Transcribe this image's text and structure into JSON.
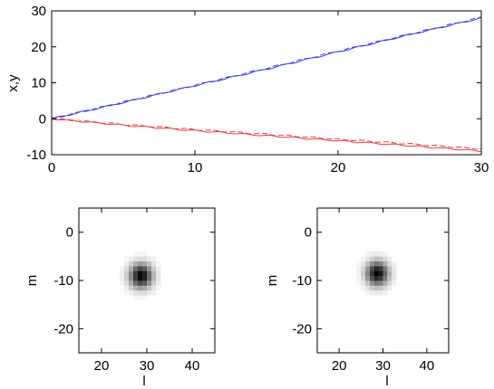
{
  "chart_data": [
    {
      "type": "line",
      "xlabel": "",
      "ylabel": "x,y",
      "xlim": [
        0,
        30
      ],
      "ylim": [
        -10,
        30
      ],
      "xticks": [
        "0",
        "10",
        "20",
        "30"
      ],
      "yticks": [
        "30",
        "20",
        "10",
        "0",
        "-10"
      ],
      "grid": false,
      "series": [
        {
          "line_style": "solid",
          "color": "#3a3af0",
          "x": [
            0,
            5,
            10,
            15,
            20,
            25,
            30
          ],
          "y": [
            0,
            4.5,
            9.2,
            13.8,
            18.6,
            23.4,
            28.0
          ]
        },
        {
          "line_style": "dashed",
          "color": "#3a3af0",
          "x": [
            0,
            5,
            10,
            15,
            20,
            25,
            30
          ],
          "y": [
            0,
            4.6,
            9.3,
            14.0,
            18.8,
            23.5,
            28.2
          ]
        },
        {
          "line_style": "solid",
          "color": "#f03a3a",
          "x": [
            0,
            5,
            10,
            15,
            20,
            25,
            30
          ],
          "y": [
            0,
            -1.8,
            -3.3,
            -4.7,
            -6.1,
            -7.5,
            -9.0
          ]
        },
        {
          "line_style": "dashed",
          "color": "#f03a3a",
          "x": [
            0,
            5,
            10,
            15,
            20,
            25,
            30
          ],
          "y": [
            0,
            -1.6,
            -3.0,
            -4.3,
            -5.7,
            -7.0,
            -8.4
          ]
        }
      ]
    },
    {
      "type": "heatmap",
      "xlabel": "l",
      "ylabel": "m",
      "xlim": [
        15,
        45
      ],
      "ylim": [
        -25,
        5
      ],
      "xticks": [
        "20",
        "30",
        "40"
      ],
      "yticks": [
        "0",
        "-10",
        "-20"
      ],
      "blob": {
        "center_l": 28.7,
        "center_m": -9.0,
        "width": 1.8
      }
    },
    {
      "type": "heatmap",
      "xlabel": "l",
      "ylabel": "m",
      "xlim": [
        15,
        45
      ],
      "ylim": [
        -25,
        5
      ],
      "xticks": [
        "20",
        "30",
        "40"
      ],
      "yticks": [
        "0",
        "-10",
        "-20"
      ],
      "blob": {
        "center_l": 28.7,
        "center_m": -8.5,
        "width": 1.8
      }
    }
  ]
}
